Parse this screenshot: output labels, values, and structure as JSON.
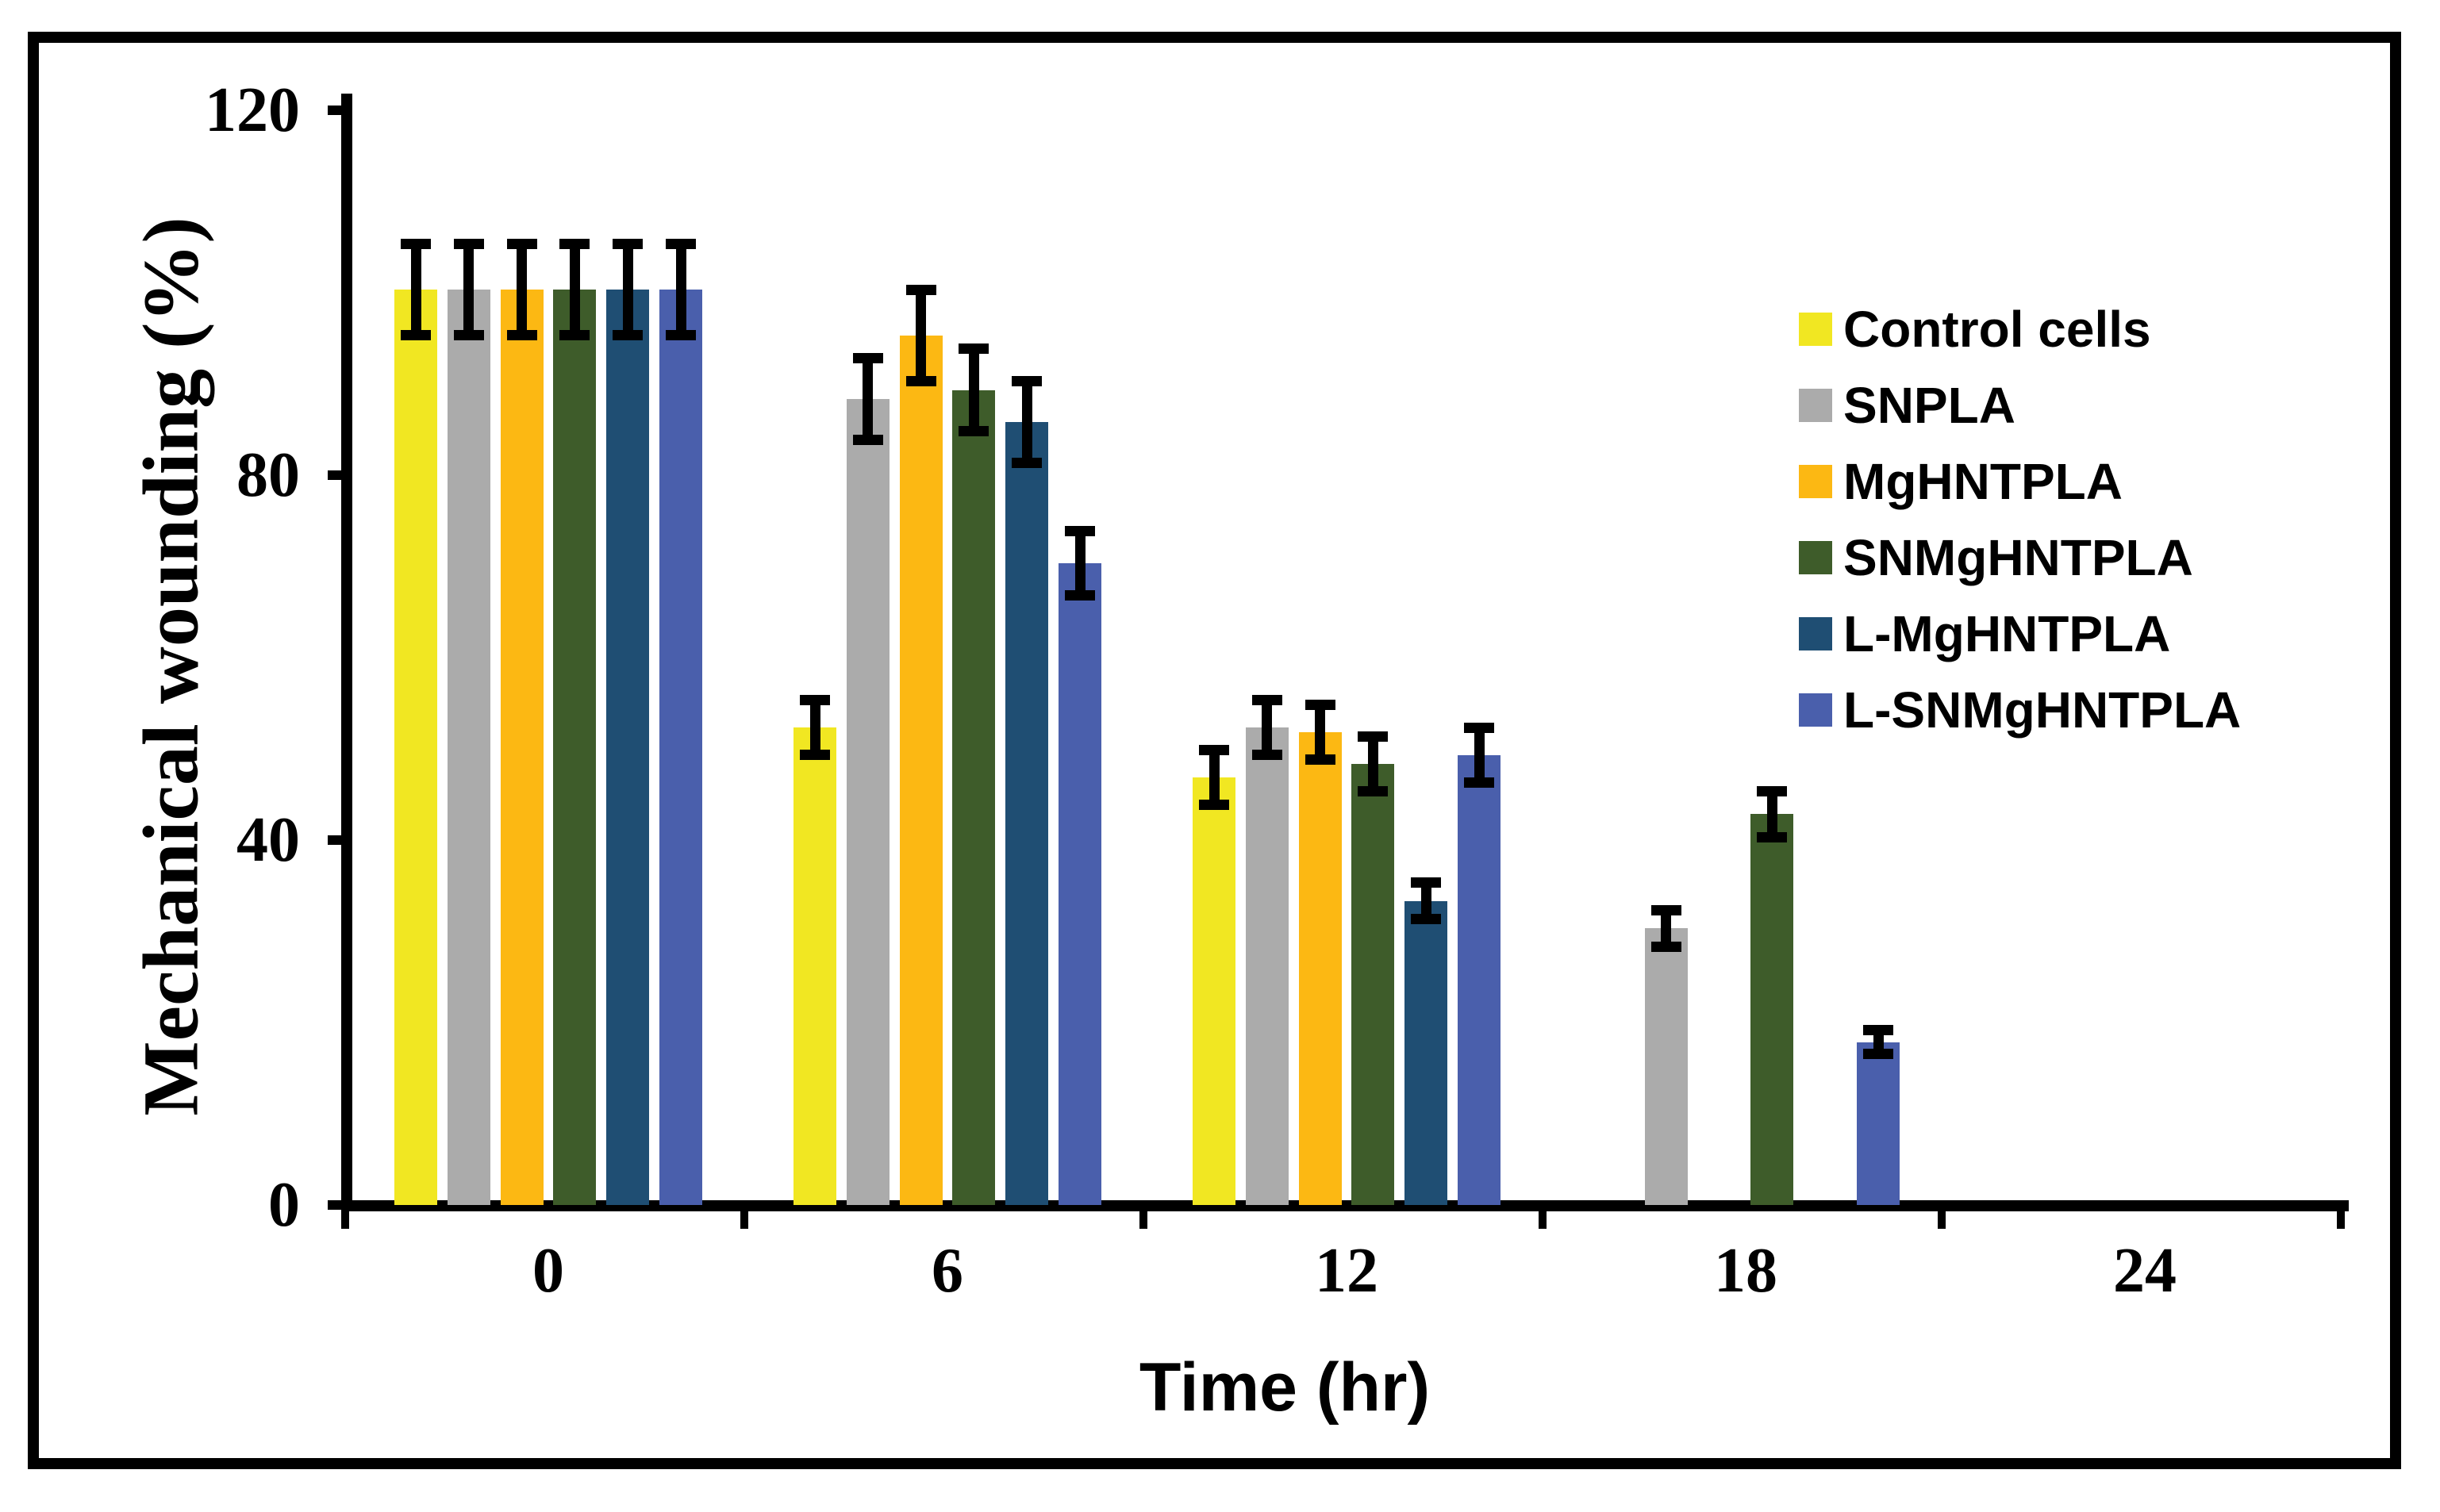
{
  "chart_data": {
    "type": "bar",
    "title": "",
    "xlabel": "Time (hr)",
    "ylabel": "Mechanical wounding (%)",
    "categories": [
      "0",
      "6",
      "12",
      "18",
      "24"
    ],
    "y_ticks": [
      0,
      40,
      80,
      120
    ],
    "ylim": [
      0,
      120
    ],
    "grid": "off",
    "legend_position": "right",
    "error_bars": true,
    "series": [
      {
        "name": "Control cells",
        "color": "#F1E722",
        "values": [
          100,
          52,
          46.5,
          0,
          0
        ],
        "errors": [
          5,
          3,
          3,
          0,
          0
        ]
      },
      {
        "name": "SNPLA",
        "color": "#ABABAB",
        "values": [
          100,
          88,
          52,
          30,
          0
        ],
        "errors": [
          5,
          4.5,
          3,
          2,
          0
        ]
      },
      {
        "name": "MgHNTPLA",
        "color": "#FCB813",
        "values": [
          100,
          95,
          51.5,
          0,
          0
        ],
        "errors": [
          5,
          5,
          3,
          0,
          0
        ]
      },
      {
        "name": "SNMgHNTPLA",
        "color": "#3E5C2A",
        "values": [
          100,
          89,
          48,
          42.5,
          0
        ],
        "errors": [
          5,
          4.5,
          3,
          2.5,
          0
        ]
      },
      {
        "name": "L-MgHNTPLA",
        "color": "#1F4E73",
        "values": [
          100,
          85.5,
          33,
          0,
          0
        ],
        "errors": [
          5,
          4.5,
          2,
          0,
          0
        ]
      },
      {
        "name": "L-SNMgHNTPLA",
        "color": "#4A5FAC",
        "values": [
          100,
          70,
          49,
          17.5,
          0
        ],
        "errors": [
          5,
          3.5,
          3,
          1.3,
          0
        ]
      }
    ],
    "axis_color": "#000000",
    "text_color": "#000000"
  }
}
